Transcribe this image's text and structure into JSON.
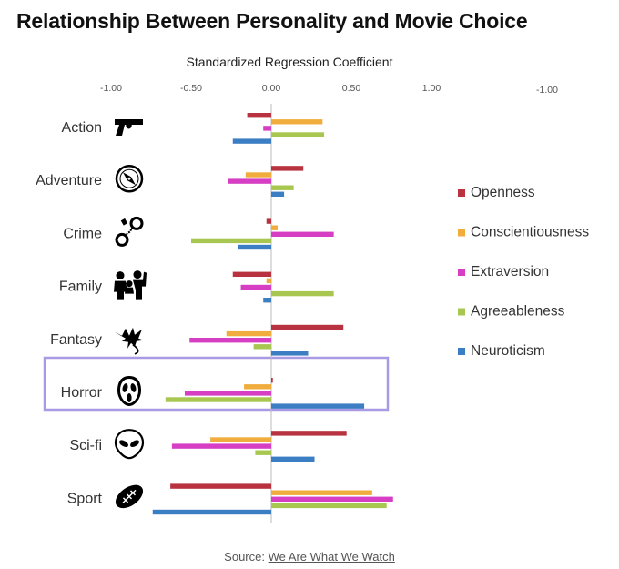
{
  "title": "Relationship Between Personality and Movie Choice",
  "source": {
    "prefix": "Source:",
    "link_text": "We Are What We Watch"
  },
  "chart_data": {
    "type": "bar",
    "orientation": "horizontal",
    "xlabel": "Standardized Regression Coefficient",
    "xlim": [
      -1.0,
      1.0
    ],
    "x_ticks": [
      "-1.00",
      "-0.50",
      "0.00",
      "0.50",
      "1.00"
    ],
    "extra_tick_label": "-1.00",
    "categories": [
      "Action",
      "Adventure",
      "Crime",
      "Family",
      "Fantasy",
      "Horror",
      "Sci-fi",
      "Sport"
    ],
    "category_icons": [
      "pistol-icon",
      "compass-icon",
      "handcuffs-icon",
      "family-icon",
      "dragon-icon",
      "ghostface-mask-icon",
      "alien-icon",
      "football-icon"
    ],
    "highlighted_category": "Horror",
    "highlight_color": "#a99ae6",
    "legend_position": "right",
    "series": [
      {
        "name": "Openness",
        "color": "#b8333f",
        "values": [
          -0.15,
          0.2,
          -0.03,
          -0.24,
          0.45,
          0.01,
          0.47,
          -0.63
        ]
      },
      {
        "name": "Conscientiousness",
        "color": "#f0ad3d",
        "values": [
          0.32,
          -0.16,
          0.04,
          -0.03,
          -0.28,
          -0.17,
          -0.38,
          0.63
        ]
      },
      {
        "name": "Extraversion",
        "color": "#d63ec4",
        "values": [
          -0.05,
          -0.27,
          0.39,
          -0.19,
          -0.51,
          -0.54,
          -0.62,
          0.76
        ]
      },
      {
        "name": "Agreeableness",
        "color": "#a8c751",
        "values": [
          0.33,
          0.14,
          -0.5,
          0.39,
          -0.11,
          -0.66,
          -0.1,
          0.72
        ]
      },
      {
        "name": "Neuroticism",
        "color": "#3b7ec4",
        "values": [
          -0.24,
          0.08,
          -0.21,
          -0.05,
          0.23,
          0.58,
          0.27,
          -0.74
        ]
      }
    ]
  }
}
